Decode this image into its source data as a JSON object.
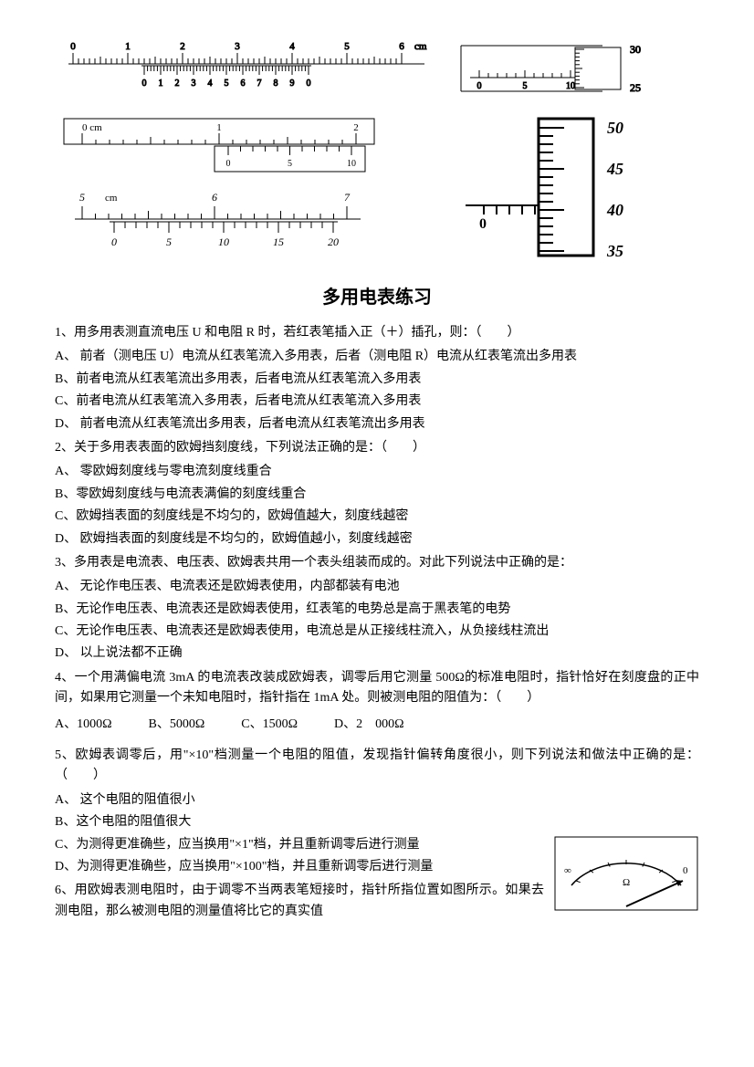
{
  "diagrams": {
    "ruler1": {
      "main_labels": [
        "0",
        "1",
        "2",
        "3",
        "4",
        "5",
        "6"
      ],
      "unit": "cm",
      "vernier_labels": [
        "0",
        "1",
        "2",
        "3",
        "4",
        "5",
        "6",
        "7",
        "8",
        "9",
        "0"
      ]
    },
    "micrometer1": {
      "thimble_top": "30",
      "thimble_bottom": "25",
      "sleeve_labels": [
        "0",
        "5",
        "10"
      ]
    },
    "ruler2": {
      "main_labels": [
        "0 cm",
        "1",
        "2"
      ],
      "vernier_labels": [
        "0",
        "5",
        "10"
      ]
    },
    "micrometer2": {
      "thimble_labels": [
        "50",
        "45",
        "40",
        "35"
      ],
      "sleeve_label": "0"
    },
    "ruler3": {
      "main_labels": [
        "5",
        "6",
        "7"
      ],
      "main_unit": "cm",
      "vernier_labels": [
        "0",
        "5",
        "10",
        "15",
        "20"
      ]
    }
  },
  "title": "多用电表练习",
  "q1": {
    "stem": "1、用多用表测直流电压 U 和电阻 R 时，若红表笔插入正（＋）插孔，则：（　　）",
    "a": "A、 前者（测电压 U）电流从红表笔流入多用表，后者（测电阻 R）电流从红表笔流出多用表",
    "b": "B、前者电流从红表笔流出多用表，后者电流从红表笔流入多用表",
    "c": "C、前者电流从红表笔流入多用表，后者电流从红表笔流入多用表",
    "d": "D、 前者电流从红表笔流出多用表，后者电流从红表笔流出多用表"
  },
  "q2": {
    "stem": "2、关于多用表表面的欧姆挡刻度线，下列说法正确的是：（　　）",
    "a": "A、 零欧姆刻度线与零电流刻度线重合",
    "b": "B、零欧姆刻度线与电流表满偏的刻度线重合",
    "c": "C、欧姆挡表面的刻度线是不均匀的，欧姆值越大，刻度线越密",
    "d": "D、 欧姆挡表面的刻度线是不均匀的，欧姆值越小，刻度线越密"
  },
  "q3": {
    "stem": "3、多用表是电流表、电压表、欧姆表共用一个表头组装而成的。对此下列说法中正确的是：",
    "a": "A、 无论作电压表、电流表还是欧姆表使用，内部都装有电池",
    "b": "B、无论作电压表、电流表还是欧姆表使用，红表笔的电势总是高于黑表笔的电势",
    "c": "C、无论作电压表、电流表还是欧姆表使用，电流总是从正接线柱流入，从负接线柱流出",
    "d": "D、 以上说法都不正确"
  },
  "q4": {
    "stem1": "4、一个用满偏电流 3mA 的电流表改装成欧姆表，调零后用它测量 500Ω的标准电阻时，指针恰好在刻度盘的正中间，如果用它测量一个未知电阻时，指针指在 1mA 处。则被测电阻的阻值为：（　　）",
    "a": "A、1000Ω",
    "b": "B、5000Ω",
    "c": "C、1500Ω",
    "d": "D、2　000Ω"
  },
  "q5": {
    "stem": "5、欧姆表调零后，用\"×10\"档测量一个电阻的阻值，发现指针偏转角度很小，则下列说法和做法中正确的是：（　　）",
    "a": "A、 这个电阻的阻值很小",
    "b": "B、这个电阻的阻值很大",
    "c": "C、为测得更准确些，应当换用\"×1\"档，并且重新调零后进行测量",
    "d": "D、为测得更准确些，应当换用\"×100\"档，并且重新调零后进行测量"
  },
  "q6": {
    "stem": "6、用欧姆表测电阻时，由于调零不当两表笔短接时，指针所指位置如图所示。如果去测电阻，那么被测电阻的测量值将比它的真实值"
  },
  "ohmmeter": {
    "left_label": "∞",
    "right_label": "0",
    "unit": "Ω"
  }
}
